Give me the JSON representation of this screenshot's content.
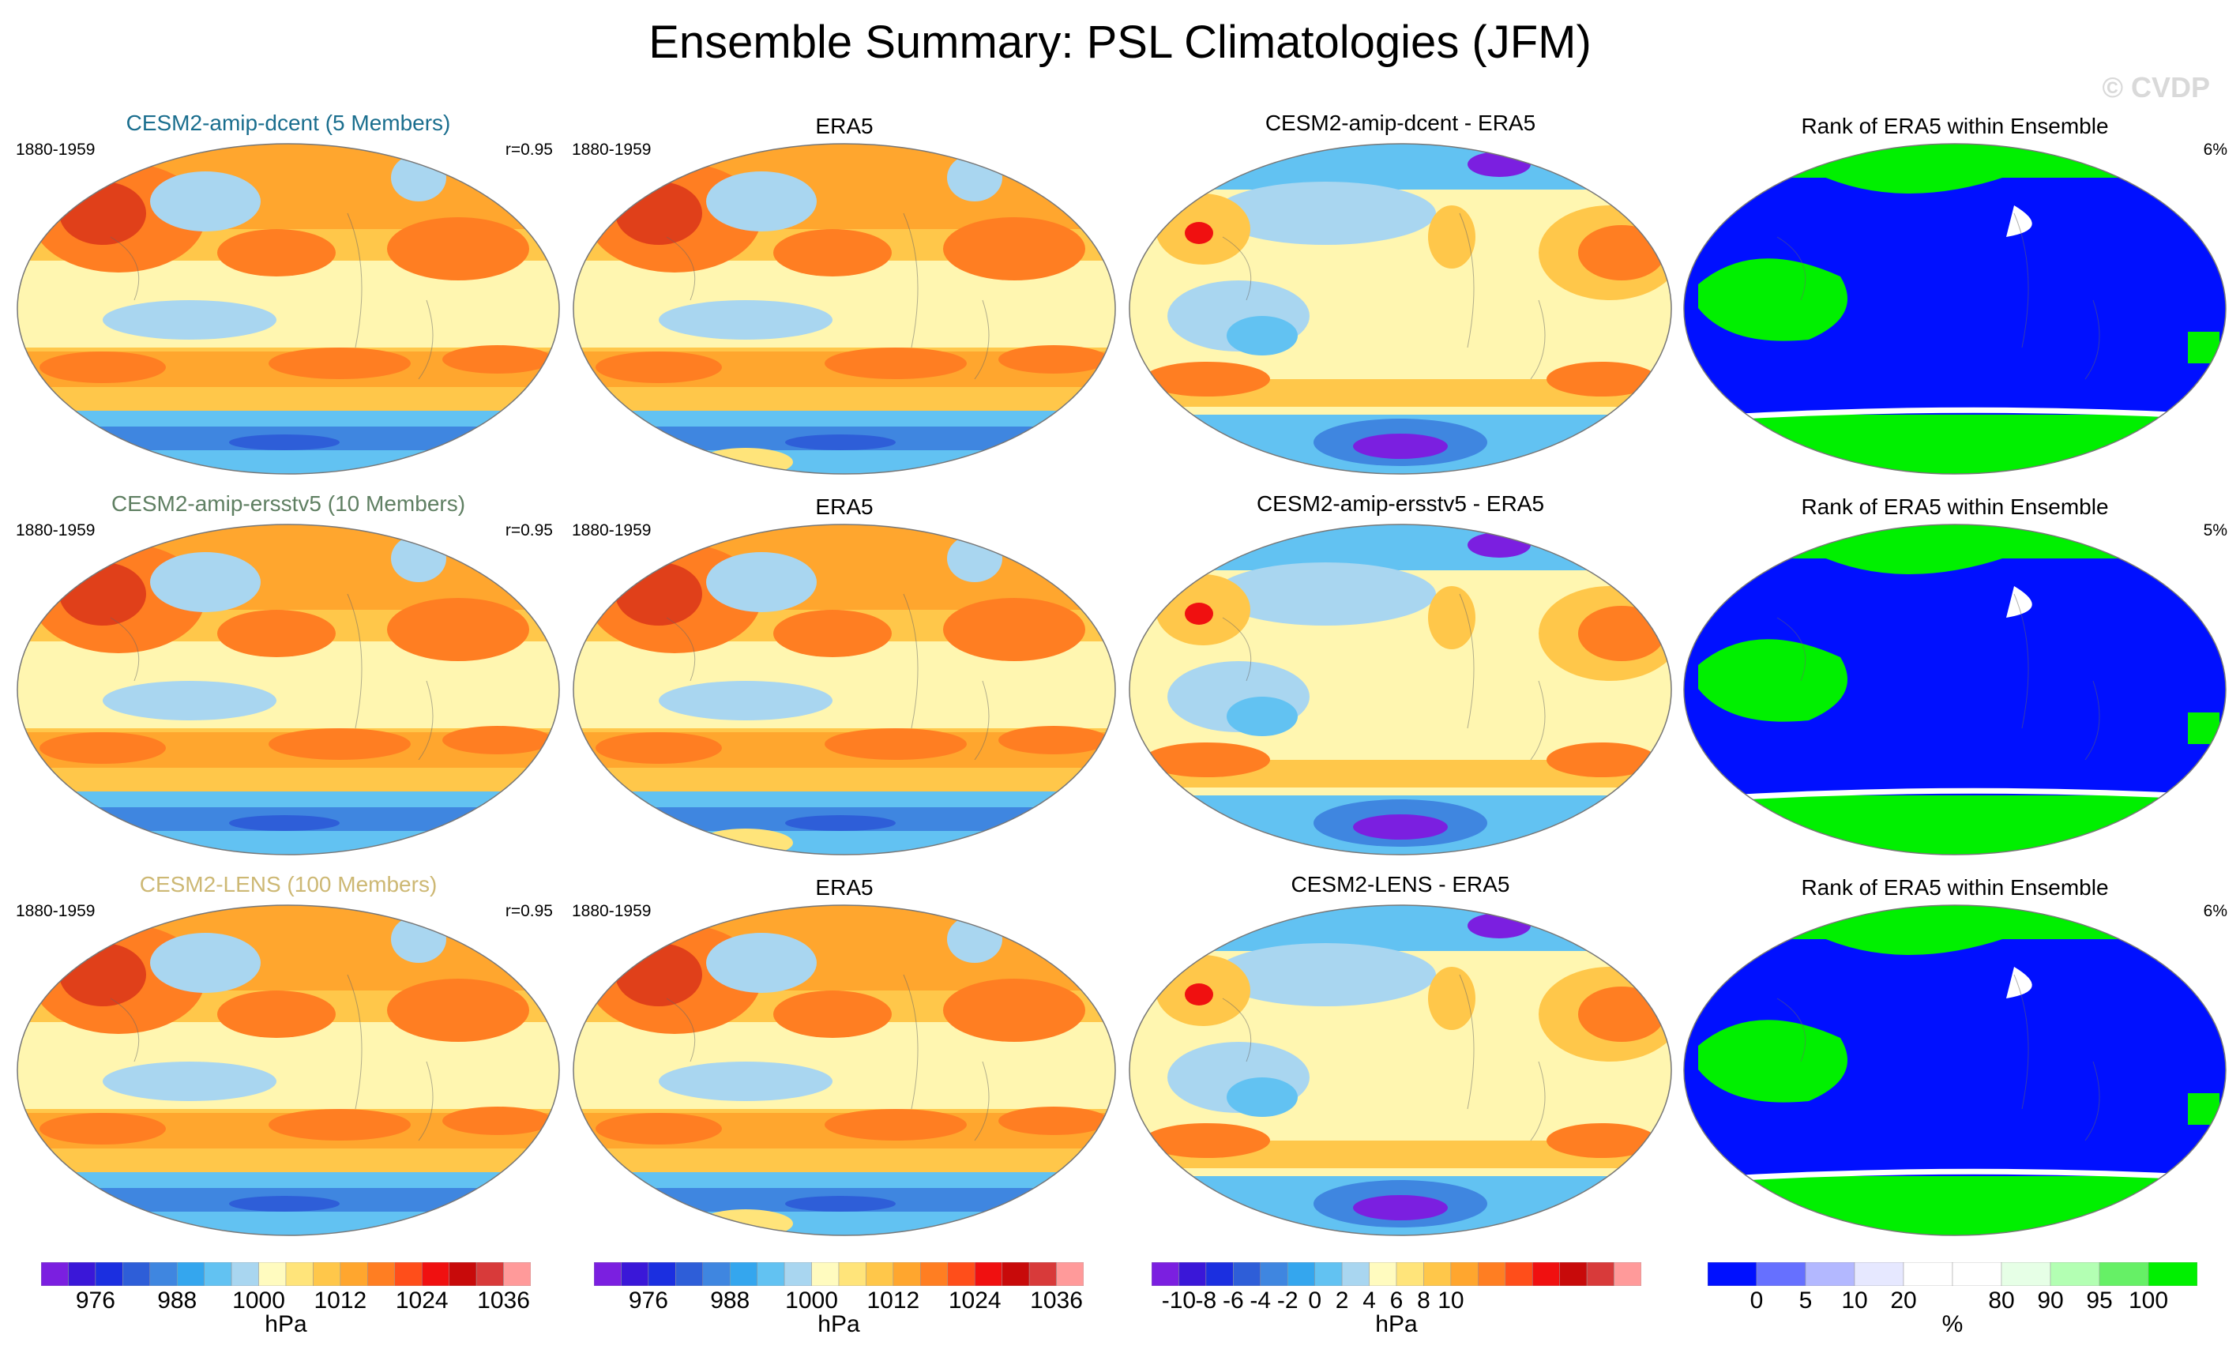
{
  "title": "Ensemble Summary: PSL Climatologies (JFM)",
  "watermark": "© CVDP",
  "rows": [
    {
      "model": "CESM2-amip-dcent (5 Members)",
      "model_color": "#1a6e8e",
      "period": "1880-1959",
      "correlation": "r=0.95",
      "obs_title": "ERA5",
      "obs_period": "1880-1959",
      "diff_title": "CESM2-amip-dcent - ERA5",
      "rank_title": "Rank of ERA5 within Ensemble",
      "rank_pct": "6%"
    },
    {
      "model": "CESM2-amip-ersstv5 (10 Members)",
      "model_color": "#5f7f62",
      "period": "1880-1959",
      "correlation": "r=0.95",
      "obs_title": "ERA5",
      "obs_period": "1880-1959",
      "diff_title": "CESM2-amip-ersstv5 - ERA5",
      "rank_title": "Rank of ERA5 within Ensemble",
      "rank_pct": "5%"
    },
    {
      "model": "CESM2-LENS (100 Members)",
      "model_color": "#cdb874",
      "period": "1880-1959",
      "correlation": "r=0.95",
      "obs_title": "ERA5",
      "obs_period": "1880-1959",
      "diff_title": "CESM2-LENS - ERA5",
      "rank_title": "Rank of ERA5 within Ensemble",
      "rank_pct": "6%"
    }
  ],
  "colorbars": [
    {
      "units": "hPa",
      "ticks": [
        "976",
        "988",
        "1000",
        "1012",
        "1024",
        "1036"
      ],
      "tick_bins": [
        2,
        5,
        8,
        11,
        14,
        17
      ],
      "colors": [
        "#7b1fe0",
        "#3a17d8",
        "#1b2fe0",
        "#2e5ed8",
        "#3f86e0",
        "#34a6ee",
        "#62c2f2",
        "#a9d6f0",
        "#fffbbf",
        "#ffe47a",
        "#ffc74a",
        "#ffa62e",
        "#ff7e22",
        "#ff4e1a",
        "#f01010",
        "#c80a0a",
        "#d83a3a",
        "#ff9a9a"
      ]
    },
    {
      "units": "hPa",
      "ticks": [
        "976",
        "988",
        "1000",
        "1012",
        "1024",
        "1036"
      ],
      "tick_bins": [
        2,
        5,
        8,
        11,
        14,
        17
      ],
      "colors": [
        "#7b1fe0",
        "#3a17d8",
        "#1b2fe0",
        "#2e5ed8",
        "#3f86e0",
        "#34a6ee",
        "#62c2f2",
        "#a9d6f0",
        "#fffbbf",
        "#ffe47a",
        "#ffc74a",
        "#ffa62e",
        "#ff7e22",
        "#ff4e1a",
        "#f01010",
        "#c80a0a",
        "#d83a3a",
        "#ff9a9a"
      ]
    },
    {
      "units": "hPa",
      "ticks": [
        "-10",
        "-8",
        "-6",
        "-4",
        "-2",
        "0",
        "2",
        "4",
        "6",
        "8",
        "10"
      ],
      "tick_bins": [
        1,
        2,
        3,
        4,
        5,
        6,
        7,
        8,
        9,
        10,
        11
      ],
      "colors": [
        "#7b1fe0",
        "#3a17d8",
        "#1b2fe0",
        "#2e5ed8",
        "#3f86e0",
        "#34a6ee",
        "#62c2f2",
        "#a9d6f0",
        "#fffbbf",
        "#ffe47a",
        "#ffc74a",
        "#ffa62e",
        "#ff7e22",
        "#ff4e1a",
        "#f01010",
        "#c80a0a",
        "#d83a3a",
        "#ff9a9a"
      ]
    },
    {
      "units": "%",
      "ticks": [
        "0",
        "5",
        "10",
        "20",
        "80",
        "90",
        "95",
        "100"
      ],
      "tick_bins": [
        1,
        2,
        3,
        4,
        6,
        7,
        8,
        9
      ],
      "colors": [
        "#0010ff",
        "#6670ff",
        "#b3b8ff",
        "#e6e8ff",
        "#ffffff",
        "#ffffff",
        "#e6ffe6",
        "#b3ffb3",
        "#66f066",
        "#00f000"
      ]
    }
  ],
  "map_palettes": {
    "psl": {
      "high1": "#ffa62e",
      "high2": "#ff7e22",
      "core": "#e0401a",
      "mid": "#ffc74a",
      "trop": "#fff6b0",
      "low": "#a9d6f0",
      "south1": "#62c2f2",
      "south2": "#3f86e0",
      "south3": "#2e5ed8",
      "antarc": "#ffe47a"
    },
    "diff": {
      "neg1": "#a9d6f0",
      "neg2": "#62c2f2",
      "neg3": "#3f86e0",
      "neg4": "#7b1fe0",
      "pos1": "#ffc74a",
      "pos2": "#ff7e22",
      "pos3": "#f01010",
      "base": "#fff6b0"
    },
    "rank": {
      "ocean": "#0010ff",
      "land": "#00f000",
      "edge": "#ffffff"
    }
  }
}
